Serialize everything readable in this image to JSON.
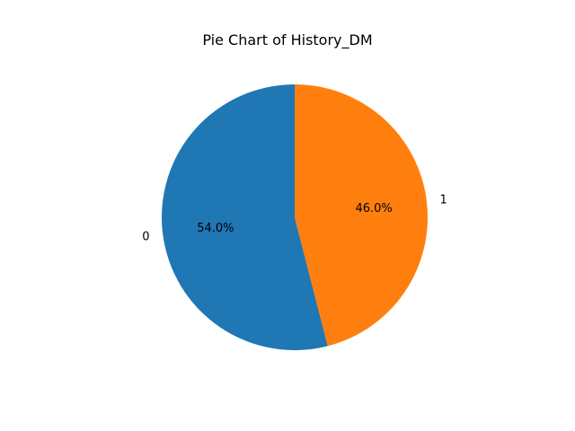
{
  "chart_data": {
    "type": "pie",
    "title": "Pie Chart of History_DM",
    "categories": [
      "0",
      "1"
    ],
    "values": [
      54.0,
      46.0
    ],
    "percent_labels": [
      "54.0%",
      "46.0%"
    ],
    "colors": [
      "#1f77b4",
      "#ff7f0e"
    ],
    "start_angle_deg": 90,
    "direction": "counterclockwise",
    "legend": "none"
  }
}
